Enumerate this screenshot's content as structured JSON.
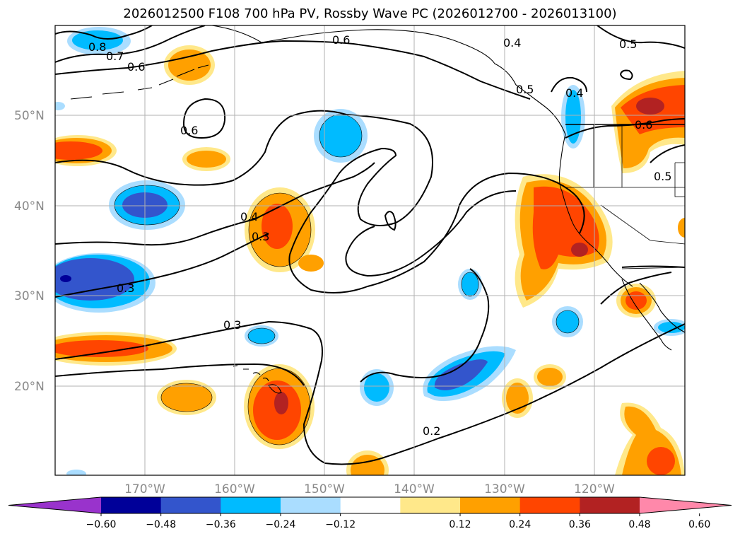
{
  "title": "2026012500 F108 700 hPa PV, Rossby Wave PC (2026012700 - 2026013100)",
  "lat_labels": [
    "50°N",
    "40°N",
    "30°N",
    "20°N"
  ],
  "lon_labels": [
    "170°W",
    "160°W",
    "150°W",
    "140°W",
    "130°W",
    "120°W"
  ],
  "contour_labels": [
    "0.8",
    "0.7",
    "0.6",
    "0.6",
    "0.6",
    "0.4",
    "0.5",
    "0.5",
    "0.4",
    "0.6",
    "0.5",
    "0.4",
    "0.3",
    "0.3",
    "0.3",
    "0.2"
  ],
  "colorbar": {
    "ticks": [
      "−0.60",
      "−0.48",
      "−0.36",
      "−0.24",
      "−0.12",
      "0.12",
      "0.24",
      "0.36",
      "0.48",
      "0.60"
    ],
    "colors": [
      "#9933cc",
      "#000099",
      "#3355cc",
      "#00bbff",
      "#aaddff",
      "#ffffff",
      "#ffe88a",
      "#ffa000",
      "#ff4500",
      "#b22222",
      "#ff88aa"
    ]
  },
  "colors": {
    "pos1": "#ffe88a",
    "pos2": "#ffa000",
    "pos3": "#ff4500",
    "pos4": "#b22222",
    "neg1": "#aaddff",
    "neg2": "#00bbff",
    "neg3": "#3355cc",
    "neg4": "#000099",
    "grid": "#b0b0b0",
    "contour": "#000000"
  }
}
